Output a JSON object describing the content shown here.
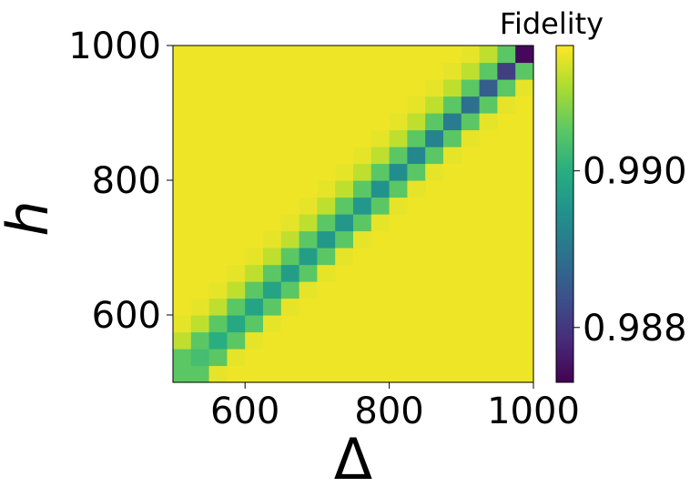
{
  "chart_data": {
    "type": "heatmap",
    "title": "",
    "xlabel": "Δ",
    "ylabel": "h",
    "xlim": [
      500,
      1000
    ],
    "ylim": [
      500,
      1000
    ],
    "x_ticks": [
      600,
      800,
      1000
    ],
    "y_ticks": [
      600,
      800,
      1000
    ],
    "grid": false,
    "colormap": "viridis",
    "grid_size": 20,
    "cell_step": 25,
    "diagonal_profile": {
      "description_values": "fidelity at distance d = (h_index - Δ_index) from the ridge; per-row ridge depth varies",
      "far_value": 0.9915,
      "offsets": [
        -2,
        -1,
        0,
        1,
        2,
        3,
        4
      ],
      "offset_values": [
        0.99145,
        0.9905,
        0.9898,
        0.9905,
        0.9912,
        0.99145,
        0.9915
      ]
    },
    "ridge_values_by_row": [
      0.9905,
      0.9903,
      0.99,
      0.9899,
      0.9898,
      0.9898,
      0.9897,
      0.9897,
      0.9896,
      0.9896,
      0.9896,
      0.9895,
      0.9894,
      0.9893,
      0.9892,
      0.9891,
      0.9889,
      0.9886,
      0.9881,
      0.9874
    ],
    "colorbar": {
      "label": "Fidelity",
      "vmin": 0.9873,
      "vmax": 0.9916,
      "ticks": [
        0.988,
        0.99
      ],
      "tick_labels": [
        "0.988",
        "0.990"
      ]
    }
  },
  "axes": {
    "x_tick_labels": [
      "600",
      "800",
      "1000"
    ],
    "y_tick_labels": [
      "600",
      "800",
      "1000"
    ]
  }
}
